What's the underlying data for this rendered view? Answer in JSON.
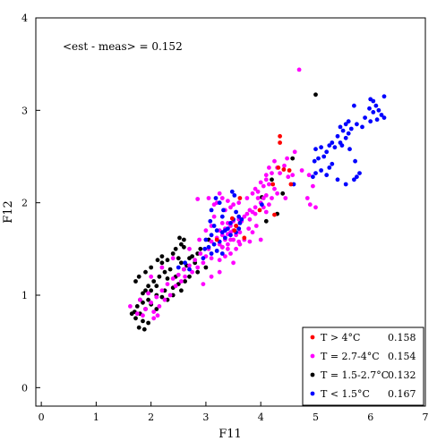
{
  "chart_data": {
    "type": "scatter",
    "title": "",
    "xlabel": "F11",
    "ylabel": "F12",
    "xlim": [
      -0.1,
      7
    ],
    "ylim": [
      -0.2,
      4
    ],
    "xticks": [
      "0",
      "1",
      "2",
      "3",
      "4",
      "5",
      "6",
      "7"
    ],
    "yticks": [
      "0",
      "1",
      "2",
      "3",
      "4"
    ],
    "grid": false,
    "legend_placement": "bottom-right",
    "annotation": "<est - meas> = 0.152",
    "series": [
      {
        "name": "T > 4°C",
        "stat": "0.158",
        "color": "#ff0000",
        "points": [
          [
            4.35,
            2.72
          ],
          [
            4.35,
            2.65
          ],
          [
            4.32,
            2.38
          ],
          [
            4.42,
            2.36
          ],
          [
            4.52,
            2.35
          ],
          [
            4.55,
            2.2
          ],
          [
            4.22,
            2.2
          ],
          [
            3.62,
            2.05
          ],
          [
            3.98,
            1.92
          ],
          [
            4.25,
            1.87
          ],
          [
            3.48,
            1.83
          ],
          [
            3.55,
            1.75
          ],
          [
            3.52,
            1.7
          ],
          [
            3.2,
            1.6
          ],
          [
            3.7,
            1.62
          ]
        ]
      },
      {
        "name": "T = 2.7-4°C",
        "stat": "0.154",
        "color": "#ff00ff",
        "points": [
          [
            4.7,
            3.44
          ],
          [
            4.25,
            2.45
          ],
          [
            4.43,
            2.4
          ],
          [
            4.35,
            2.32
          ],
          [
            4.5,
            2.28
          ],
          [
            4.58,
            2.3
          ],
          [
            4.1,
            2.25
          ],
          [
            4.15,
            2.2
          ],
          [
            4.25,
            2.15
          ],
          [
            4.05,
            2.05
          ],
          [
            4.3,
            2.1
          ],
          [
            4.1,
            2.08
          ],
          [
            3.95,
            2.05
          ],
          [
            4.0,
            2.0
          ],
          [
            4.05,
            1.95
          ],
          [
            3.9,
            1.95
          ],
          [
            3.8,
            1.92
          ],
          [
            3.85,
            1.9
          ],
          [
            3.9,
            1.88
          ],
          [
            3.75,
            1.88
          ],
          [
            3.7,
            1.85
          ],
          [
            3.8,
            1.82
          ],
          [
            3.6,
            1.82
          ],
          [
            3.65,
            1.8
          ],
          [
            3.5,
            1.8
          ],
          [
            3.4,
            1.78
          ],
          [
            3.3,
            1.78
          ],
          [
            3.55,
            1.75
          ],
          [
            3.45,
            1.75
          ],
          [
            3.6,
            1.72
          ],
          [
            3.35,
            1.72
          ],
          [
            3.5,
            1.7
          ],
          [
            3.25,
            1.7
          ],
          [
            3.45,
            1.68
          ],
          [
            3.4,
            1.66
          ],
          [
            3.3,
            1.65
          ],
          [
            3.55,
            1.65
          ],
          [
            3.62,
            1.68
          ],
          [
            3.2,
            1.62
          ],
          [
            3.35,
            1.6
          ],
          [
            3.45,
            1.6
          ],
          [
            3.5,
            1.6
          ],
          [
            3.25,
            1.55
          ],
          [
            3.4,
            1.55
          ],
          [
            3.6,
            1.58
          ],
          [
            3.1,
            1.58
          ],
          [
            3.3,
            1.52
          ],
          [
            3.05,
            1.5
          ],
          [
            3.2,
            1.48
          ],
          [
            3.4,
            1.5
          ],
          [
            2.9,
            1.45
          ],
          [
            3.0,
            1.42
          ],
          [
            3.1,
            1.4
          ],
          [
            2.8,
            1.38
          ],
          [
            2.95,
            1.35
          ],
          [
            2.7,
            1.32
          ],
          [
            2.85,
            1.3
          ],
          [
            2.6,
            1.28
          ],
          [
            2.75,
            1.25
          ],
          [
            2.5,
            1.22
          ],
          [
            2.62,
            1.2
          ],
          [
            2.4,
            1.18
          ],
          [
            2.55,
            1.15
          ],
          [
            2.3,
            1.12
          ],
          [
            2.45,
            1.1
          ],
          [
            2.2,
            1.05
          ],
          [
            2.35,
            1.0
          ],
          [
            2.1,
            0.98
          ],
          [
            2.25,
            0.95
          ],
          [
            2.0,
            0.92
          ],
          [
            2.15,
            0.88
          ],
          [
            1.9,
            0.85
          ],
          [
            2.05,
            0.82
          ],
          [
            1.85,
            0.78
          ],
          [
            1.62,
            0.88
          ],
          [
            2.05,
            0.75
          ],
          [
            3.25,
            2.1
          ],
          [
            3.3,
            2.05
          ],
          [
            3.2,
            2.0
          ],
          [
            3.15,
            1.98
          ],
          [
            3.05,
            2.05
          ],
          [
            3.4,
            2.02
          ],
          [
            3.45,
            1.95
          ],
          [
            3.35,
            1.92
          ],
          [
            3.5,
            1.98
          ],
          [
            3.6,
            2.0
          ],
          [
            3.75,
            2.05
          ],
          [
            3.85,
            2.1
          ],
          [
            3.9,
            2.15
          ],
          [
            3.95,
            2.12
          ],
          [
            4.05,
            2.18
          ],
          [
            4.1,
            2.3
          ],
          [
            4.2,
            2.32
          ],
          [
            4.3,
            2.38
          ],
          [
            4.15,
            2.38
          ],
          [
            4.0,
            2.22
          ],
          [
            4.2,
            2.05
          ],
          [
            4.15,
            1.98
          ],
          [
            4.1,
            1.9
          ],
          [
            3.92,
            1.75
          ],
          [
            3.85,
            1.68
          ],
          [
            3.78,
            1.72
          ],
          [
            3.7,
            1.6
          ],
          [
            3.62,
            1.55
          ],
          [
            3.55,
            1.5
          ],
          [
            3.45,
            1.45
          ],
          [
            3.35,
            1.42
          ],
          [
            3.5,
            1.35
          ],
          [
            3.25,
            1.38
          ],
          [
            3.8,
            1.58
          ],
          [
            4.0,
            1.6
          ],
          [
            2.7,
            1.5
          ],
          [
            2.88,
            1.6
          ],
          [
            3.0,
            1.7
          ],
          [
            3.1,
            1.75
          ],
          [
            3.15,
            1.85
          ],
          [
            4.48,
            2.48
          ],
          [
            4.62,
            2.55
          ],
          [
            4.75,
            2.35
          ],
          [
            4.88,
            2.3
          ],
          [
            4.95,
            2.18
          ],
          [
            4.85,
            2.05
          ],
          [
            4.45,
            2.05
          ],
          [
            2.85,
            2.04
          ],
          [
            4.9,
            1.98
          ],
          [
            5.0,
            1.95
          ],
          [
            3.25,
            1.25
          ],
          [
            3.1,
            1.2
          ],
          [
            2.95,
            1.12
          ],
          [
            2.4,
            1.4
          ],
          [
            2.2,
            1.3
          ],
          [
            2.0,
            1.2
          ],
          [
            1.95,
            1.02
          ],
          [
            1.8,
            0.95
          ],
          [
            1.75,
            0.8
          ],
          [
            2.12,
            0.78
          ]
        ]
      },
      {
        "name": "T = 1.5-2.7°C",
        "stat": "0.132",
        "color": "#000000",
        "points": [
          [
            5.0,
            3.17
          ],
          [
            4.58,
            2.48
          ],
          [
            4.2,
            2.25
          ],
          [
            4.02,
            2.06
          ],
          [
            4.3,
            1.88
          ],
          [
            4.4,
            2.1
          ],
          [
            4.1,
            1.8
          ],
          [
            3.3,
            1.52
          ],
          [
            3.05,
            1.6
          ],
          [
            2.9,
            1.5
          ],
          [
            2.85,
            1.45
          ],
          [
            2.75,
            1.42
          ],
          [
            2.8,
            1.35
          ],
          [
            2.7,
            1.4
          ],
          [
            2.6,
            1.52
          ],
          [
            2.55,
            1.55
          ],
          [
            2.6,
            1.6
          ],
          [
            2.52,
            1.62
          ],
          [
            2.45,
            1.5
          ],
          [
            2.4,
            1.45
          ],
          [
            2.5,
            1.4
          ],
          [
            2.65,
            1.32
          ],
          [
            2.6,
            1.28
          ],
          [
            2.3,
            1.38
          ],
          [
            2.2,
            1.35
          ],
          [
            2.35,
            1.28
          ],
          [
            2.25,
            1.25
          ],
          [
            2.15,
            1.2
          ],
          [
            2.3,
            1.18
          ],
          [
            2.45,
            1.2
          ],
          [
            2.5,
            1.12
          ],
          [
            2.4,
            1.08
          ],
          [
            2.25,
            1.05
          ],
          [
            2.1,
            1.1
          ],
          [
            2.05,
            1.15
          ],
          [
            1.95,
            1.1
          ],
          [
            1.9,
            1.05
          ],
          [
            2.0,
            1.05
          ],
          [
            1.85,
            1.02
          ],
          [
            2.1,
            1.0
          ],
          [
            2.2,
            0.98
          ],
          [
            2.3,
            0.95
          ],
          [
            1.95,
            0.95
          ],
          [
            2.0,
            0.9
          ],
          [
            1.85,
            0.92
          ],
          [
            1.8,
            0.95
          ],
          [
            1.9,
            0.85
          ],
          [
            1.75,
            0.88
          ],
          [
            1.7,
            0.82
          ],
          [
            1.8,
            0.8
          ],
          [
            1.72,
            0.75
          ],
          [
            1.65,
            0.8
          ],
          [
            1.85,
            0.72
          ],
          [
            1.95,
            0.7
          ],
          [
            1.78,
            0.65
          ],
          [
            1.88,
            0.63
          ],
          [
            2.4,
            1.0
          ],
          [
            2.55,
            1.05
          ],
          [
            2.7,
            1.2
          ],
          [
            2.85,
            1.25
          ],
          [
            3.0,
            1.3
          ],
          [
            1.72,
            1.15
          ],
          [
            1.78,
            1.2
          ],
          [
            1.9,
            1.25
          ],
          [
            2.0,
            1.3
          ],
          [
            2.12,
            1.38
          ],
          [
            2.2,
            1.42
          ],
          [
            2.55,
            1.35
          ],
          [
            2.62,
            1.15
          ],
          [
            2.1,
            0.85
          ]
        ]
      },
      {
        "name": "T < 1.5°C",
        "stat": "0.167",
        "color": "#0000ff",
        "points": [
          [
            6.0,
            3.12
          ],
          [
            6.05,
            3.1
          ],
          [
            6.25,
            3.15
          ],
          [
            6.1,
            3.05
          ],
          [
            5.98,
            3.02
          ],
          [
            6.15,
            3.0
          ],
          [
            6.05,
            2.98
          ],
          [
            6.2,
            2.95
          ],
          [
            6.25,
            2.92
          ],
          [
            6.12,
            2.9
          ],
          [
            6.0,
            2.88
          ],
          [
            5.9,
            2.92
          ],
          [
            5.7,
            3.05
          ],
          [
            5.6,
            2.88
          ],
          [
            5.55,
            2.85
          ],
          [
            5.75,
            2.85
          ],
          [
            5.85,
            2.82
          ],
          [
            5.65,
            2.8
          ],
          [
            5.45,
            2.82
          ],
          [
            5.5,
            2.78
          ],
          [
            5.6,
            2.75
          ],
          [
            5.4,
            2.72
          ],
          [
            5.55,
            2.7
          ],
          [
            5.3,
            2.65
          ],
          [
            5.45,
            2.65
          ],
          [
            5.25,
            2.62
          ],
          [
            5.35,
            2.6
          ],
          [
            5.1,
            2.6
          ],
          [
            5.0,
            2.58
          ],
          [
            5.2,
            2.55
          ],
          [
            5.15,
            2.5
          ],
          [
            5.05,
            2.48
          ],
          [
            4.98,
            2.45
          ],
          [
            5.3,
            2.42
          ],
          [
            5.25,
            2.38
          ],
          [
            5.1,
            2.35
          ],
          [
            5.2,
            2.3
          ],
          [
            5.0,
            2.32
          ],
          [
            4.95,
            2.28
          ],
          [
            5.4,
            2.25
          ],
          [
            5.8,
            2.32
          ],
          [
            5.75,
            2.28
          ],
          [
            5.7,
            2.25
          ],
          [
            5.55,
            2.2
          ],
          [
            5.72,
            2.45
          ],
          [
            4.6,
            2.2
          ],
          [
            3.55,
            1.9
          ],
          [
            3.6,
            1.85
          ],
          [
            3.65,
            1.82
          ],
          [
            3.5,
            1.82
          ],
          [
            3.45,
            1.78
          ],
          [
            3.4,
            1.72
          ],
          [
            3.35,
            1.7
          ],
          [
            3.3,
            1.68
          ],
          [
            3.2,
            1.7
          ],
          [
            3.1,
            1.65
          ],
          [
            3.0,
            1.6
          ],
          [
            3.15,
            1.55
          ],
          [
            3.05,
            1.52
          ],
          [
            2.98,
            1.5
          ],
          [
            3.2,
            1.48
          ],
          [
            3.3,
            1.45
          ],
          [
            3.1,
            1.45
          ],
          [
            2.95,
            1.4
          ],
          [
            3.25,
            1.58
          ],
          [
            3.35,
            1.62
          ],
          [
            3.45,
            1.65
          ],
          [
            3.55,
            1.68
          ],
          [
            3.6,
            1.72
          ],
          [
            3.62,
            1.78
          ],
          [
            3.15,
            1.75
          ],
          [
            3.08,
            1.8
          ],
          [
            3.3,
            1.85
          ],
          [
            3.32,
            1.92
          ],
          [
            3.25,
            2.0
          ],
          [
            3.18,
            2.05
          ],
          [
            4.02,
            1.98
          ],
          [
            2.5,
            1.3
          ],
          [
            2.62,
            1.35
          ],
          [
            2.7,
            1.28
          ],
          [
            3.48,
            2.12
          ],
          [
            3.52,
            2.08
          ],
          [
            3.1,
            1.92
          ],
          [
            5.62,
            2.58
          ],
          [
            5.48,
            2.62
          ]
        ]
      }
    ]
  }
}
